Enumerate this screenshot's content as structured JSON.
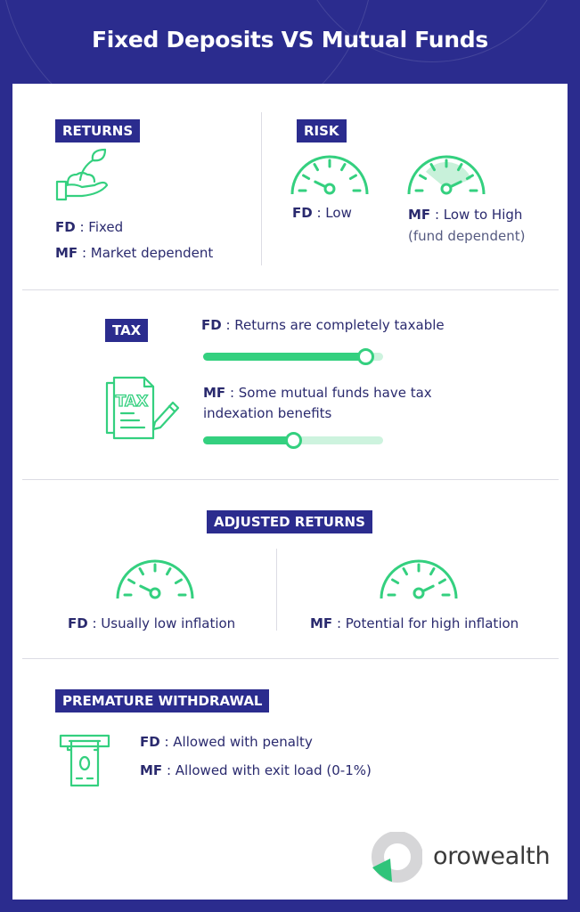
{
  "title": "Fixed Deposits VS Mutual Funds",
  "colors": {
    "background": "#2b2c8e",
    "accent_green": "#34d07f",
    "text": "#2a2a6e"
  },
  "returns": {
    "label": "RETURNS",
    "icon": "plant-in-hand-icon",
    "fd_key": "FD",
    "fd_value": " : Fixed",
    "mf_key": "MF",
    "mf_value": " : Market dependent"
  },
  "risk": {
    "label": "RISK",
    "fd_key": "FD",
    "fd_value": " : Low",
    "mf_key": "MF",
    "mf_value": " : Low to High",
    "mf_note": "(fund dependent)",
    "fd_gauge_level": 0.2,
    "mf_gauge_level": 0.8
  },
  "tax": {
    "label": "TAX",
    "icon": "tax-document-icon",
    "fd_key": "FD",
    "fd_value": " : Returns are completely taxable",
    "fd_level": 0.9,
    "mf_key": "MF",
    "mf_value_line1": " : Some mutual funds have tax",
    "mf_value_line2": "indexation benefits",
    "mf_level": 0.5
  },
  "adjusted": {
    "label": "ADJUSTED RETURNS",
    "fd_key": "FD",
    "fd_value": " : Usually low inflation",
    "mf_key": "MF",
    "mf_value": " : Potential for high inflation",
    "fd_gauge_level": 0.2,
    "mf_gauge_level": 0.8
  },
  "withdrawal": {
    "label": "PREMATURE WITHDRAWAL",
    "icon": "atm-cash-icon",
    "fd_key": "FD",
    "fd_value": " : Allowed with penalty",
    "mf_key": "MF",
    "mf_value": " : Allowed with exit load (0-1%)"
  },
  "brand": {
    "name": "orowealth"
  }
}
